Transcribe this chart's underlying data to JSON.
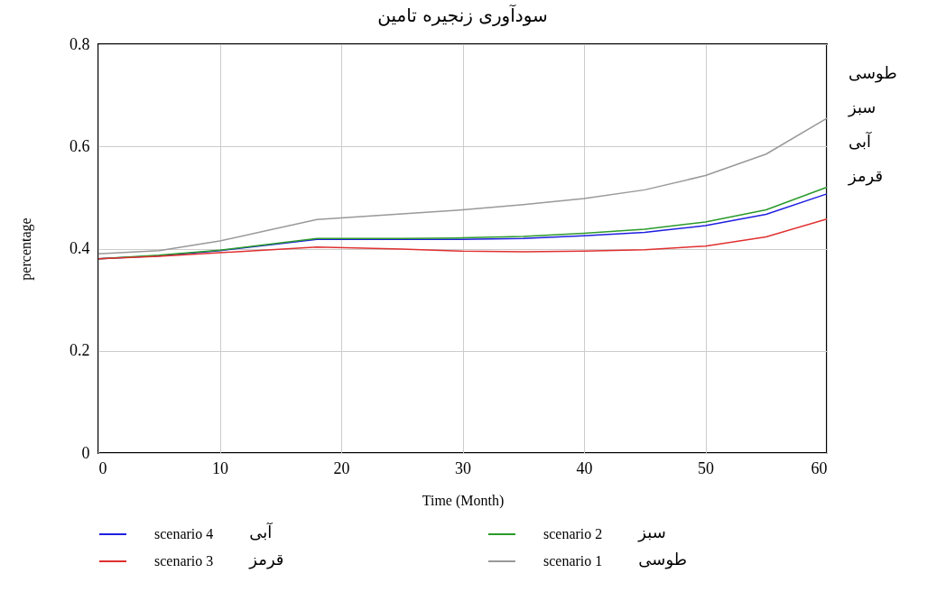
{
  "chart_data": {
    "type": "line",
    "title": "سودآوری زنجیره تامین",
    "xlabel": "Time (Month)",
    "ylabel": "percentage",
    "x": [
      0,
      5,
      10,
      18,
      25,
      30,
      35,
      40,
      45,
      50,
      55,
      60
    ],
    "series": [
      {
        "name": "scenario 4",
        "color": "#1f1fe0",
        "values": [
          0.38,
          0.386,
          0.396,
          0.418,
          0.418,
          0.418,
          0.42,
          0.425,
          0.432,
          0.445,
          0.467,
          0.507
        ]
      },
      {
        "name": "scenario 2",
        "color": "#2a9a2a",
        "values": [
          0.38,
          0.387,
          0.397,
          0.42,
          0.42,
          0.421,
          0.424,
          0.43,
          0.438,
          0.452,
          0.476,
          0.52
        ]
      },
      {
        "name": "scenario 3",
        "color": "#e03030",
        "values": [
          0.38,
          0.385,
          0.392,
          0.403,
          0.399,
          0.395,
          0.394,
          0.395,
          0.398,
          0.405,
          0.423,
          0.458
        ]
      },
      {
        "name": "scenario 1",
        "color": "#999999",
        "values": [
          0.39,
          0.396,
          0.415,
          0.457,
          0.468,
          0.476,
          0.486,
          0.498,
          0.515,
          0.543,
          0.585,
          0.655
        ]
      }
    ],
    "xlim": [
      0,
      60
    ],
    "xticks": [
      0,
      10,
      20,
      30,
      40,
      50,
      60
    ],
    "ylim": [
      0,
      0.8
    ],
    "yticks": [
      {
        "value": 0,
        "label": "0"
      },
      0.2,
      0.4,
      0.6,
      0.8
    ],
    "grid": true,
    "legend": "bottom",
    "marker": "none",
    "line_style": "solid",
    "annotations": [
      "طوسی",
      "سبز",
      "آبی",
      "قرمز",
      "آبی",
      "سبز",
      "قرمز",
      "طوسی"
    ]
  }
}
